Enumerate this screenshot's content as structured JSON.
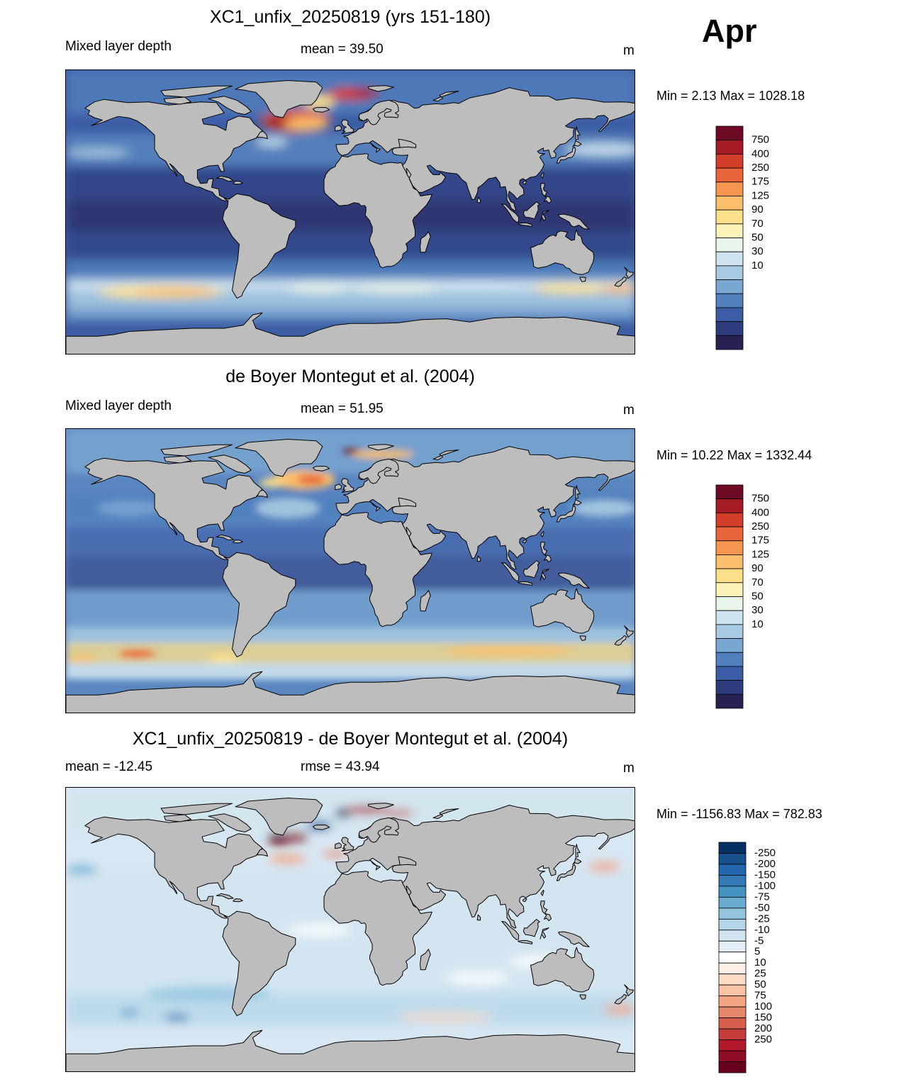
{
  "month": "Apr",
  "panels": [
    {
      "title": "XC1_unfix_20250819 (yrs 151-180)",
      "left_label": "Mixed layer depth",
      "center_label": "mean =  39.50",
      "units": "m",
      "minmax": "Min =   2.13 Max = 1028.18",
      "kind": "model"
    },
    {
      "title": "de Boyer Montegut et al. (2004)",
      "left_label": "Mixed layer depth",
      "center_label": "mean =  51.95",
      "units": "m",
      "minmax": "Min =  10.22 Max = 1332.44",
      "kind": "obs"
    },
    {
      "title": "XC1_unfix_20250819 - de Boyer Montegut et al. (2004)",
      "left_label": "mean = -12.45",
      "center_label": "rmse =  43.94",
      "units": "m",
      "minmax": "Min = -1156.83 Max = 782.83",
      "kind": "diff"
    }
  ],
  "colorbar_mld": {
    "labels": [
      "10",
      "30",
      "50",
      "70",
      "90",
      "125",
      "175",
      "250",
      "400",
      "750"
    ],
    "colors": [
      "#282253",
      "#2e3c7e",
      "#3a5da6",
      "#5080bd",
      "#7aa6d2",
      "#a7cbe3",
      "#cfe4f0",
      "#e9f4ea",
      "#fbf3b8",
      "#fde08c",
      "#fbbe6a",
      "#f69550",
      "#e8653b",
      "#d33e2b",
      "#a51c24",
      "#6d0b24"
    ]
  },
  "colorbar_diff": {
    "labels": [
      "250",
      "200",
      "150",
      "100",
      "75",
      "50",
      "25",
      "10",
      "5",
      "-5",
      "-10",
      "-25",
      "-50",
      "-75",
      "-100",
      "-150",
      "-200",
      "-250"
    ],
    "colors": [
      "#67001f",
      "#8e0c25",
      "#b2182b",
      "#c53e3a",
      "#d6604d",
      "#e6876c",
      "#f4a582",
      "#f9c3a6",
      "#fddbc7",
      "#fef0e7",
      "#ffffff",
      "#e4eef6",
      "#d1e5f0",
      "#b4d6e8",
      "#92c5de",
      "#6aabd0",
      "#4393c3",
      "#3379b4",
      "#2166ac",
      "#15508b",
      "#053061"
    ]
  },
  "map_colors": {
    "land": "#bdbdbd",
    "ocean_base_model": "#3b5da4",
    "ocean_base_obs": "#5a86c0",
    "ocean_base_diff": "#d7e7f3"
  }
}
